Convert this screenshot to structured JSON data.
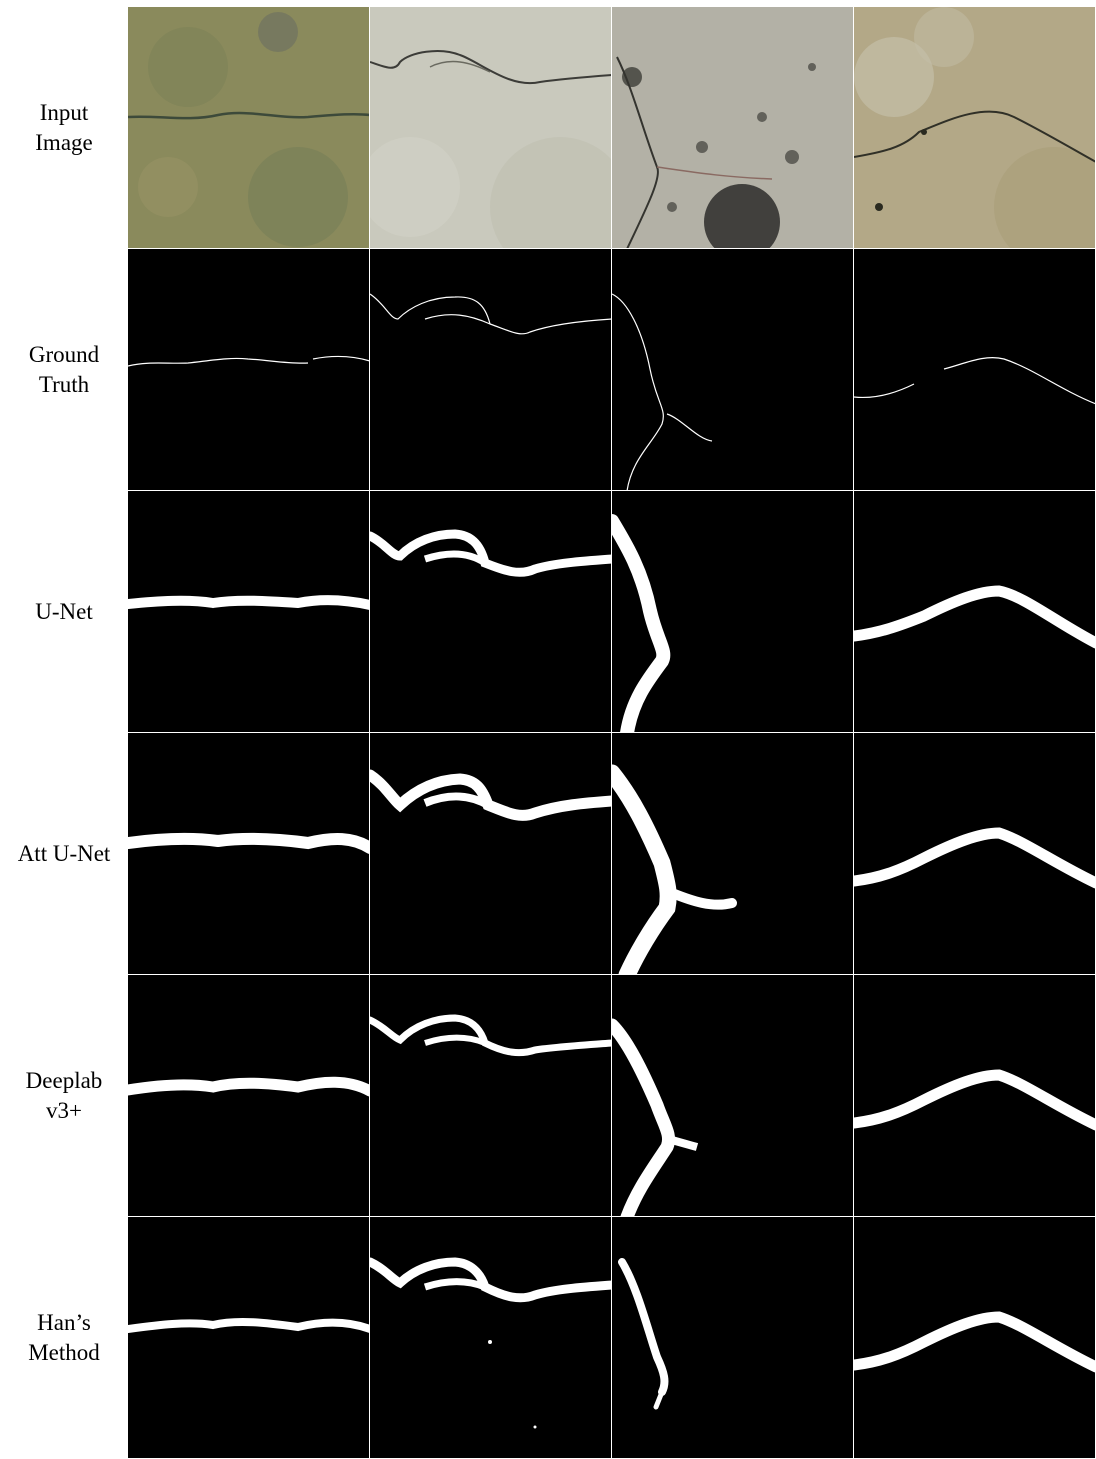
{
  "figure": {
    "row_labels": [
      "Input\nImage",
      "Ground\nTruth",
      "U-Net",
      "Att U-Net",
      "Deeplab\nv3+",
      "Han’s\nMethod"
    ],
    "photo_colors": [
      "#8a8a5c",
      "#c9c9bd",
      "#b3b1a6",
      "#b3a887"
    ],
    "mask_colors": {
      "background": "#000000",
      "crack": "#ffffff"
    }
  }
}
